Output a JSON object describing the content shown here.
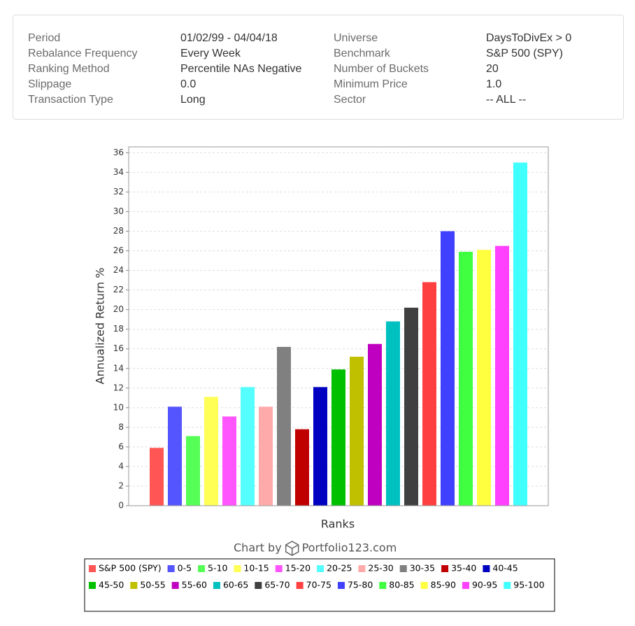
{
  "summary": {
    "rows": [
      [
        "Period",
        "01/02/99 - 04/04/18",
        "Universe",
        "DaysToDivEx > 0"
      ],
      [
        "Rebalance Frequency",
        "Every Week",
        "Benchmark",
        "S&P 500 (SPY)"
      ],
      [
        "Ranking Method",
        "Percentile NAs Negative",
        "Number of Buckets",
        "20"
      ],
      [
        "Slippage",
        "0.0",
        "Minimum Price",
        "1.0"
      ],
      [
        "Transaction Type",
        "Long",
        "Sector",
        "-- ALL --"
      ]
    ]
  },
  "chart_data": {
    "type": "bar",
    "xlabel": "Ranks",
    "ylabel": "Annualized Return %",
    "credit": [
      "Chart by",
      "Portfolio123.com"
    ],
    "ylim": [
      0,
      36.6
    ],
    "yticks": [
      0,
      2,
      4,
      6,
      8,
      10,
      12,
      14,
      16,
      18,
      20,
      22,
      24,
      26,
      28,
      30,
      32,
      34,
      36
    ],
    "grid": true,
    "series": [
      {
        "name": "S&P 500 (SPY)",
        "color": "#ff5555",
        "values": [
          5.9
        ]
      },
      {
        "name": "0-5",
        "color": "#5555ff",
        "values": [
          10.1
        ]
      },
      {
        "name": "5-10",
        "color": "#55ff55",
        "values": [
          7.1
        ]
      },
      {
        "name": "10-15",
        "color": "#ffff55",
        "values": [
          11.1
        ]
      },
      {
        "name": "15-20",
        "color": "#ff55ff",
        "values": [
          9.1
        ]
      },
      {
        "name": "20-25",
        "color": "#55ffff",
        "values": [
          12.1
        ]
      },
      {
        "name": "25-30",
        "color": "#ffaaaa",
        "values": [
          10.1
        ]
      },
      {
        "name": "30-35",
        "color": "#808080",
        "values": [
          16.2
        ]
      },
      {
        "name": "35-40",
        "color": "#c00000",
        "values": [
          7.8
        ]
      },
      {
        "name": "40-45",
        "color": "#0000c0",
        "values": [
          12.1
        ]
      },
      {
        "name": "45-50",
        "color": "#00c000",
        "values": [
          13.9
        ]
      },
      {
        "name": "50-55",
        "color": "#c0c000",
        "values": [
          15.2
        ]
      },
      {
        "name": "55-60",
        "color": "#c000c0",
        "values": [
          16.5
        ]
      },
      {
        "name": "60-65",
        "color": "#00c0c0",
        "values": [
          18.8
        ]
      },
      {
        "name": "65-70",
        "color": "#404040",
        "values": [
          20.2
        ]
      },
      {
        "name": "70-75",
        "color": "#ff4040",
        "values": [
          22.8
        ]
      },
      {
        "name": "75-80",
        "color": "#4040ff",
        "values": [
          28.0
        ]
      },
      {
        "name": "80-85",
        "color": "#40ff40",
        "values": [
          25.9
        ]
      },
      {
        "name": "85-90",
        "color": "#ffff40",
        "values": [
          26.1
        ]
      },
      {
        "name": "90-95",
        "color": "#ff40ff",
        "values": [
          26.5
        ]
      },
      {
        "name": "95-100",
        "color": "#40ffff",
        "values": [
          35.0
        ]
      }
    ]
  }
}
